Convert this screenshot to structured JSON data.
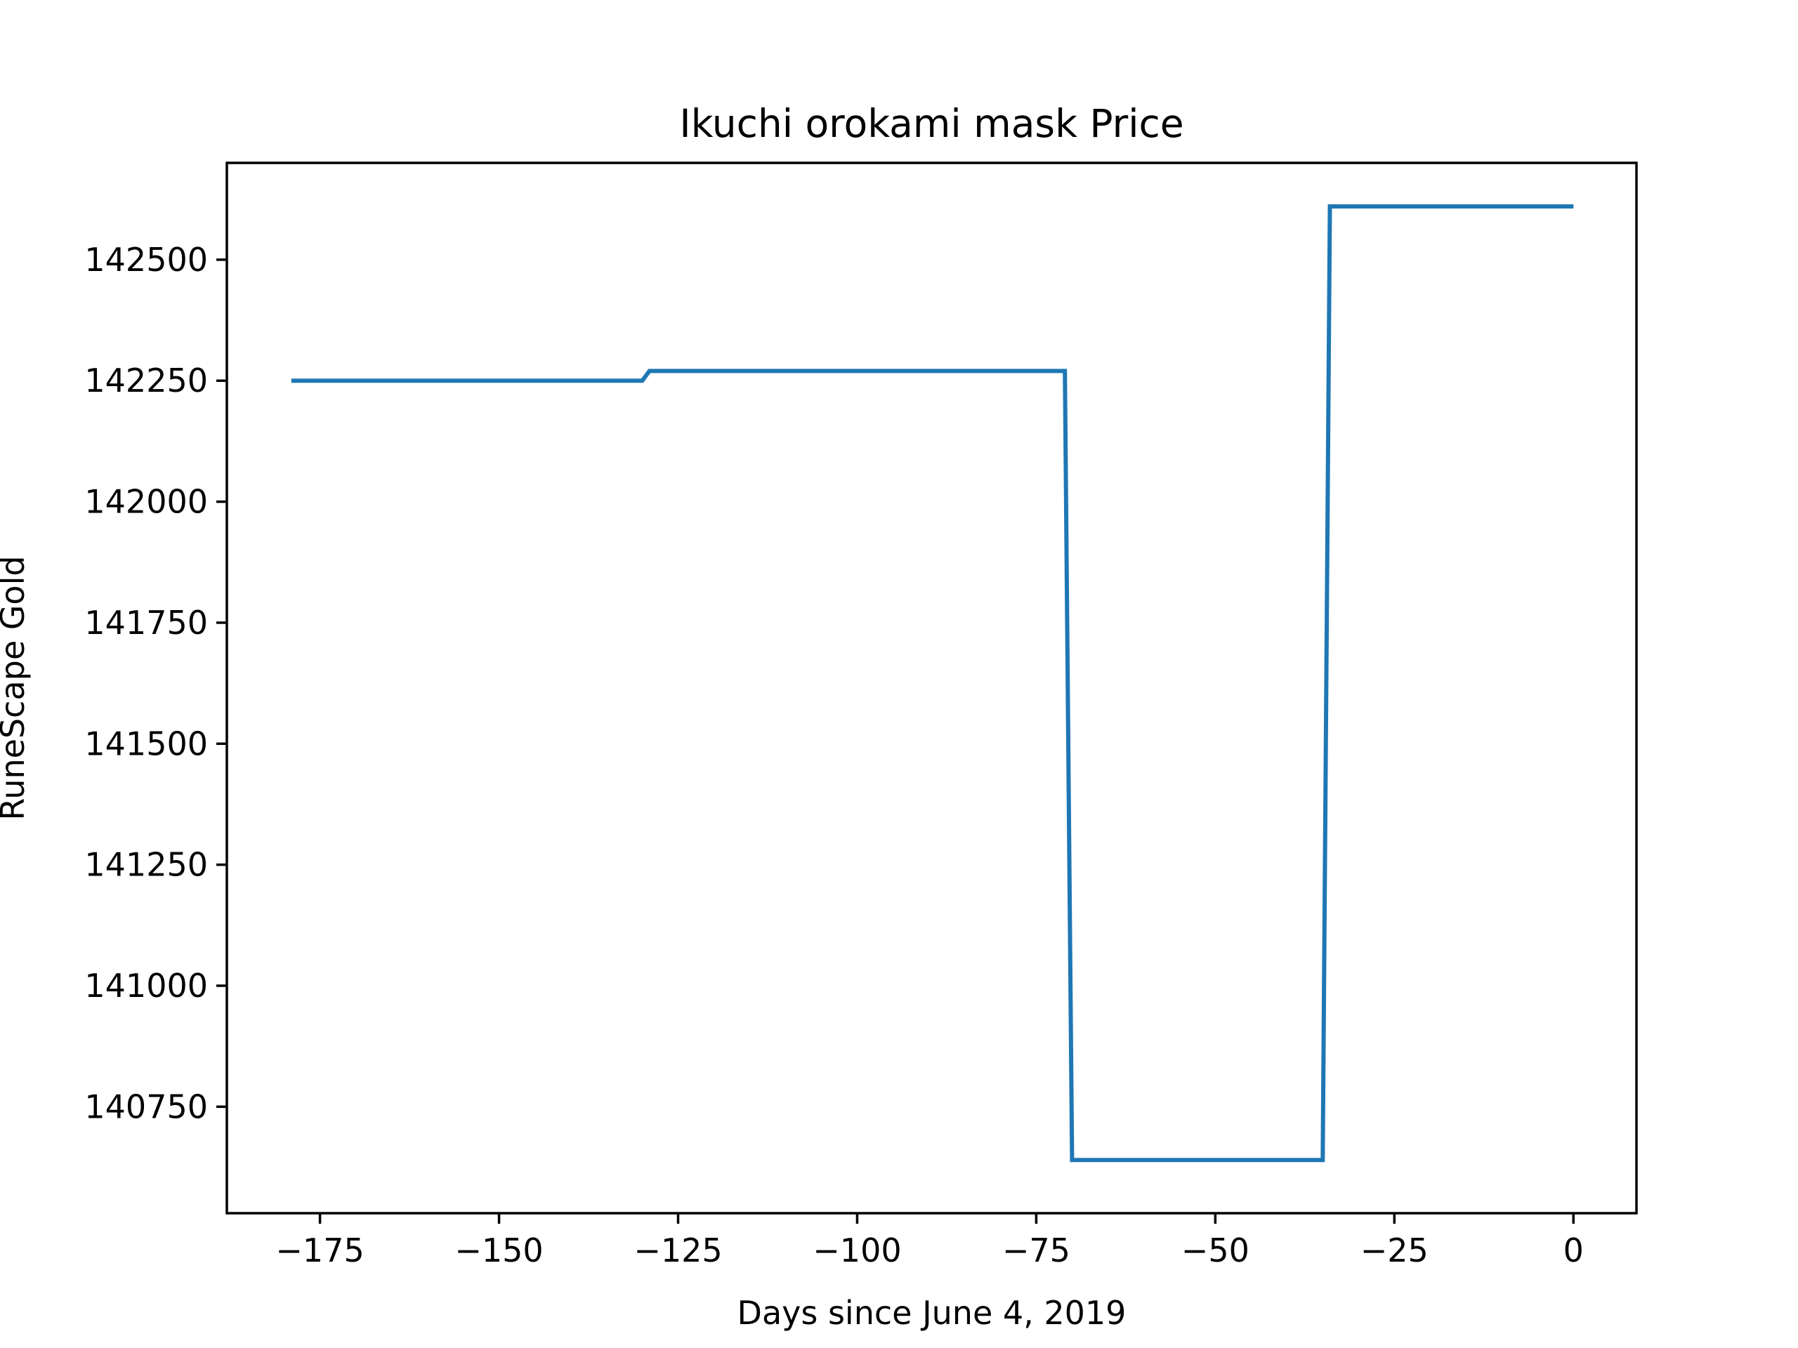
{
  "chart_data": {
    "type": "line",
    "title": "Ikuchi orokami mask Price",
    "xlabel": "Days since June 4, 2019",
    "ylabel": "RuneScape Gold",
    "xlim": [
      -188,
      8.8
    ],
    "ylim": [
      140530,
      142700
    ],
    "xticks": [
      -175,
      -150,
      -125,
      -100,
      -75,
      -50,
      -25,
      0
    ],
    "xtick_labels": [
      "−175",
      "−150",
      "−125",
      "−100",
      "−75",
      "−50",
      "−25",
      "0"
    ],
    "yticks": [
      140750,
      141000,
      141250,
      141500,
      141750,
      142000,
      142250,
      142500
    ],
    "ytick_labels": [
      "140750",
      "141000",
      "141250",
      "141500",
      "141750",
      "142000",
      "142250",
      "142500"
    ],
    "grid": false,
    "legend": "none",
    "series": [
      {
        "color": "#1f77b4",
        "x": [
          -179,
          -130,
          -129,
          -71,
          -70,
          -35,
          -34,
          0
        ],
        "y": [
          142250,
          142250,
          142270,
          142270,
          140640,
          140640,
          142610,
          142610
        ]
      }
    ]
  }
}
